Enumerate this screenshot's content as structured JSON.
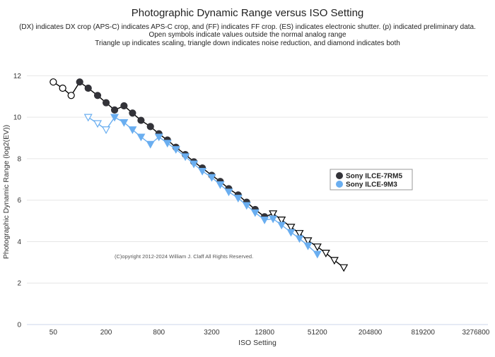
{
  "chart_data": {
    "type": "scatter",
    "title": "Photographic Dynamic Range versus ISO Setting",
    "subtitles": [
      "(DX) indicates DX crop (APS-C) indicates APS-C crop, and (FF) indicates FF crop. (ES) indicates electronic shutter. (p) indicated preliminary data.",
      "Open symbols indicate values outside the normal analog range",
      "Triangle up indicates scaling, triangle down indicates noise reduction, and diamond indicates both"
    ],
    "xlabel": "ISO Setting",
    "ylabel": "Photographic Dynamic Range (log2(EV))",
    "x_scale": "log2",
    "xlim": [
      25,
      4500000
    ],
    "ylim": [
      0,
      13
    ],
    "x_ticks": [
      50,
      200,
      800,
      3200,
      12800,
      51200,
      204800,
      819200,
      3276800
    ],
    "y_ticks": [
      0,
      2,
      4,
      6,
      8,
      10,
      12
    ],
    "grid": "horizontal",
    "legend_position": "right",
    "annotation": "(C)opyright 2012-2024 William J. Claff All Rights Reserved.",
    "series": [
      {
        "name": "Sony ILCE-7RM5",
        "color": "#333339",
        "line_color": "#000000",
        "points": [
          {
            "x": 50,
            "y": 11.7,
            "marker": "circle",
            "open": true
          },
          {
            "x": 64,
            "y": 11.4,
            "marker": "circle",
            "open": true
          },
          {
            "x": 80,
            "y": 11.05,
            "marker": "circle",
            "open": true
          },
          {
            "x": 100,
            "y": 11.7,
            "marker": "circle",
            "open": false
          },
          {
            "x": 125,
            "y": 11.4,
            "marker": "circle",
            "open": false
          },
          {
            "x": 160,
            "y": 11.05,
            "marker": "circle",
            "open": false
          },
          {
            "x": 200,
            "y": 10.7,
            "marker": "circle",
            "open": false
          },
          {
            "x": 250,
            "y": 10.35,
            "marker": "circle",
            "open": false
          },
          {
            "x": 320,
            "y": 10.55,
            "marker": "circle",
            "open": false
          },
          {
            "x": 400,
            "y": 10.2,
            "marker": "circle",
            "open": false
          },
          {
            "x": 500,
            "y": 9.85,
            "marker": "circle",
            "open": false
          },
          {
            "x": 640,
            "y": 9.55,
            "marker": "circle",
            "open": false
          },
          {
            "x": 800,
            "y": 9.2,
            "marker": "circle",
            "open": false
          },
          {
            "x": 1000,
            "y": 8.9,
            "marker": "circle",
            "open": false
          },
          {
            "x": 1250,
            "y": 8.55,
            "marker": "circle",
            "open": false
          },
          {
            "x": 1600,
            "y": 8.2,
            "marker": "circle",
            "open": false
          },
          {
            "x": 2000,
            "y": 7.85,
            "marker": "circle",
            "open": false
          },
          {
            "x": 2500,
            "y": 7.55,
            "marker": "circle",
            "open": false
          },
          {
            "x": 3200,
            "y": 7.2,
            "marker": "circle",
            "open": false
          },
          {
            "x": 4000,
            "y": 6.9,
            "marker": "circle",
            "open": false
          },
          {
            "x": 5000,
            "y": 6.55,
            "marker": "circle",
            "open": false
          },
          {
            "x": 6400,
            "y": 6.25,
            "marker": "circle",
            "open": false
          },
          {
            "x": 8000,
            "y": 5.9,
            "marker": "circle",
            "open": false
          },
          {
            "x": 10000,
            "y": 5.55,
            "marker": "circle",
            "open": false
          },
          {
            "x": 12800,
            "y": 5.2,
            "marker": "circle",
            "open": false
          },
          {
            "x": 16000,
            "y": 5.35,
            "marker": "triangle-down",
            "open": true
          },
          {
            "x": 20000,
            "y": 5.05,
            "marker": "triangle-down",
            "open": true
          },
          {
            "x": 25600,
            "y": 4.7,
            "marker": "triangle-down",
            "open": true
          },
          {
            "x": 32000,
            "y": 4.4,
            "marker": "triangle-down",
            "open": true
          },
          {
            "x": 40000,
            "y": 4.05,
            "marker": "triangle-down",
            "open": true
          },
          {
            "x": 51200,
            "y": 3.75,
            "marker": "triangle-down",
            "open": true
          },
          {
            "x": 64000,
            "y": 3.45,
            "marker": "triangle-down",
            "open": true
          },
          {
            "x": 80000,
            "y": 3.1,
            "marker": "triangle-down",
            "open": true
          },
          {
            "x": 102400,
            "y": 2.75,
            "marker": "triangle-down",
            "open": true
          }
        ]
      },
      {
        "name": "Sony ILCE-9M3",
        "color": "#6aaef0",
        "line_color": "#6aaef0",
        "points": [
          {
            "x": 125,
            "y": 10.0,
            "marker": "triangle-down",
            "open": true
          },
          {
            "x": 160,
            "y": 9.7,
            "marker": "triangle-down",
            "open": true
          },
          {
            "x": 200,
            "y": 9.4,
            "marker": "triangle-down",
            "open": true
          },
          {
            "x": 250,
            "y": 10.0,
            "marker": "triangle-down",
            "open": false
          },
          {
            "x": 320,
            "y": 9.75,
            "marker": "triangle-down",
            "open": false
          },
          {
            "x": 400,
            "y": 9.4,
            "marker": "triangle-down",
            "open": false
          },
          {
            "x": 500,
            "y": 9.05,
            "marker": "triangle-down",
            "open": false
          },
          {
            "x": 640,
            "y": 8.7,
            "marker": "triangle-down",
            "open": false
          },
          {
            "x": 800,
            "y": 9.05,
            "marker": "triangle-down",
            "open": false
          },
          {
            "x": 1000,
            "y": 8.75,
            "marker": "triangle-down",
            "open": false
          },
          {
            "x": 1250,
            "y": 8.45,
            "marker": "triangle-down",
            "open": false
          },
          {
            "x": 1600,
            "y": 8.1,
            "marker": "triangle-down",
            "open": false
          },
          {
            "x": 2000,
            "y": 7.75,
            "marker": "triangle-down",
            "open": false
          },
          {
            "x": 2500,
            "y": 7.4,
            "marker": "triangle-down",
            "open": false
          },
          {
            "x": 3200,
            "y": 7.1,
            "marker": "triangle-down",
            "open": false
          },
          {
            "x": 4000,
            "y": 6.75,
            "marker": "triangle-down",
            "open": false
          },
          {
            "x": 5000,
            "y": 6.4,
            "marker": "triangle-down",
            "open": false
          },
          {
            "x": 6400,
            "y": 6.1,
            "marker": "triangle-down",
            "open": false
          },
          {
            "x": 8000,
            "y": 5.75,
            "marker": "triangle-down",
            "open": false
          },
          {
            "x": 10000,
            "y": 5.4,
            "marker": "triangle-down",
            "open": false
          },
          {
            "x": 12800,
            "y": 5.05,
            "marker": "triangle-down",
            "open": false
          },
          {
            "x": 16000,
            "y": 5.1,
            "marker": "triangle-down",
            "open": false
          },
          {
            "x": 20000,
            "y": 4.8,
            "marker": "triangle-down",
            "open": false
          },
          {
            "x": 25600,
            "y": 4.45,
            "marker": "triangle-down",
            "open": false
          },
          {
            "x": 32000,
            "y": 4.15,
            "marker": "triangle-down",
            "open": false
          },
          {
            "x": 40000,
            "y": 3.8,
            "marker": "triangle-down",
            "open": false
          },
          {
            "x": 51200,
            "y": 3.4,
            "marker": "triangle-down",
            "open": false
          }
        ]
      }
    ]
  }
}
